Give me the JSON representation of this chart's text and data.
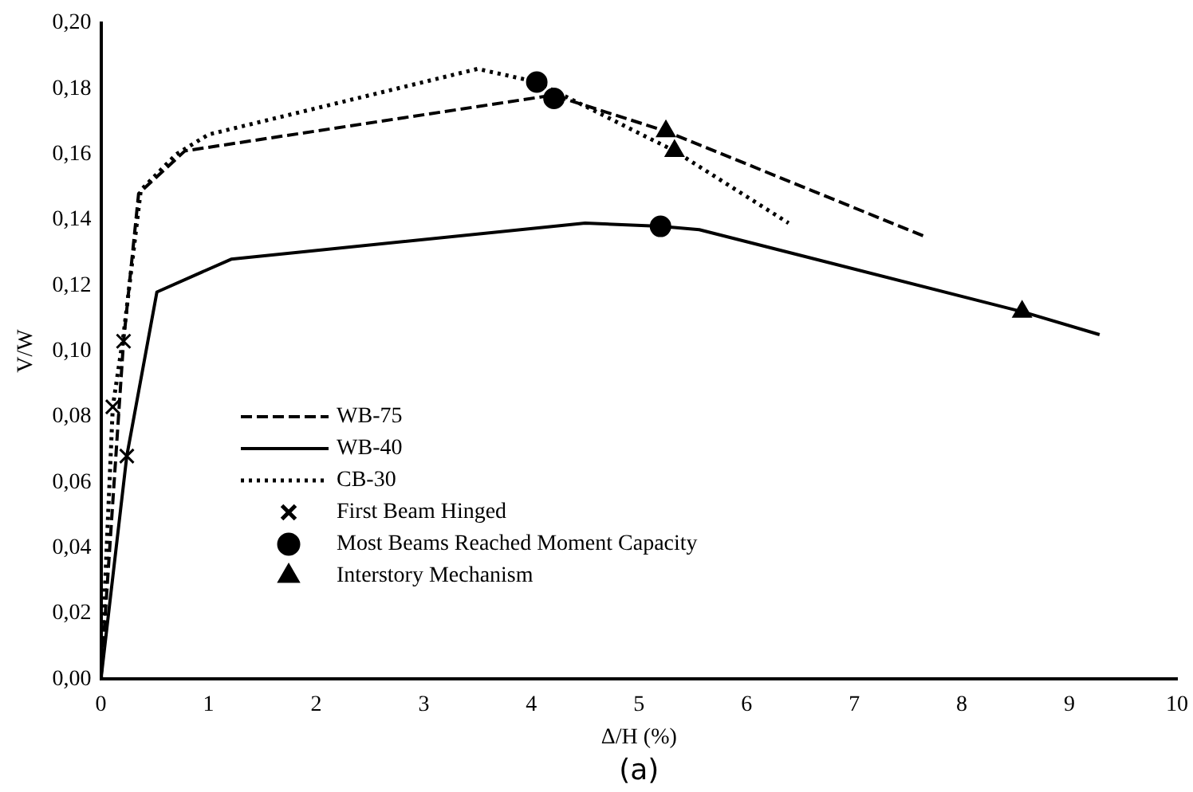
{
  "chart_data": {
    "type": "line",
    "xlabel": "Δ/H (%)",
    "ylabel": "V/W",
    "annotations": [
      "(a)"
    ],
    "xlim": [
      0,
      10
    ],
    "xticks": [
      0,
      1,
      2,
      3,
      4,
      5,
      6,
      7,
      8,
      9,
      10
    ],
    "ylim": [
      0,
      0.2
    ],
    "yticks": [
      {
        "value": 0,
        "label": "0,00"
      },
      {
        "value": 0.02,
        "label": "0,02"
      },
      {
        "value": 0.04,
        "label": "0,04"
      },
      {
        "value": 0.06,
        "label": "0,06"
      },
      {
        "value": 0.08,
        "label": "0,08"
      },
      {
        "value": 0.1,
        "label": "0,10"
      },
      {
        "value": 0.12,
        "label": "0,12"
      },
      {
        "value": 0.14,
        "label": "0,14"
      },
      {
        "value": 0.16,
        "label": "0,16"
      },
      {
        "value": 0.18,
        "label": "0,18"
      },
      {
        "value": 0.2,
        "label": "0,20"
      }
    ],
    "grid": false,
    "legend": "left",
    "series": [
      {
        "name": "WB-75",
        "type": "line",
        "line_style": "dashed",
        "marker": "none",
        "color": "#000000",
        "x": [
          0,
          0.21,
          0.35,
          0.78,
          4.2,
          5.25,
          7.65
        ],
        "values": [
          0,
          0.103,
          0.148,
          0.161,
          0.178,
          0.167,
          0.135
        ]
      },
      {
        "name": "WB-40",
        "type": "line",
        "line_style": "solid",
        "marker": "none",
        "color": "#000000",
        "x": [
          0,
          0.24,
          0.52,
          1.21,
          4.5,
          5.2,
          5.56,
          8.56,
          9.28
        ],
        "values": [
          0,
          0.068,
          0.118,
          0.128,
          0.139,
          0.138,
          0.137,
          0.112,
          0.105
        ]
      },
      {
        "name": "CB-30",
        "type": "line",
        "line_style": "dotted",
        "marker": "none",
        "color": "#000000",
        "x": [
          0,
          0.11,
          0.21,
          0.37,
          0.7,
          1.0,
          3.5,
          4.05,
          5.33,
          6.39
        ],
        "values": [
          0,
          0.083,
          0.105,
          0.149,
          0.16,
          0.166,
          0.186,
          0.182,
          0.161,
          0.139
        ]
      },
      {
        "name": "First Beam Hinged",
        "type": "scatter",
        "marker": "cross",
        "color": "#000000",
        "x": [
          0.11,
          0.21,
          0.24
        ],
        "values": [
          0.083,
          0.103,
          0.068
        ]
      },
      {
        "name": "Most Beams Reached Moment Capacity",
        "type": "scatter",
        "marker": "circle",
        "color": "#000000",
        "x": [
          4.05,
          4.21,
          5.2
        ],
        "values": [
          0.182,
          0.177,
          0.138
        ]
      },
      {
        "name": "Interstory Mechanism",
        "type": "scatter",
        "marker": "triangle",
        "color": "#000000",
        "x": [
          5.25,
          5.33,
          8.56
        ],
        "values": [
          0.167,
          0.161,
          0.112
        ]
      }
    ]
  }
}
